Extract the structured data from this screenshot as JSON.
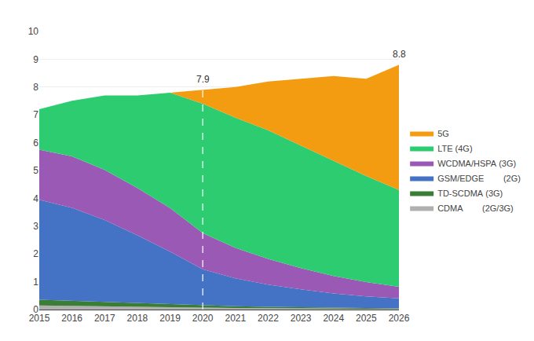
{
  "chart_data": {
    "type": "area",
    "stacked": true,
    "x": [
      2015,
      2016,
      2017,
      2018,
      2019,
      2020,
      2021,
      2022,
      2023,
      2024,
      2025,
      2026
    ],
    "series": [
      {
        "name": "CDMA        (2G/3G)",
        "color": "#b0b0b0",
        "values": [
          0.15,
          0.13,
          0.11,
          0.09,
          0.08,
          0.07,
          0.06,
          0.05,
          0.04,
          0.03,
          0.02,
          0.02
        ]
      },
      {
        "name": "TD-SCDMA (3G)",
        "color": "#3a7d34",
        "values": [
          0.2,
          0.18,
          0.16,
          0.13,
          0.1,
          0.08,
          0.06,
          0.05,
          0.04,
          0.03,
          0.02,
          0.02
        ]
      },
      {
        "name": "GSM/EDGE        (2G)",
        "color": "#4472c4",
        "values": [
          3.6,
          3.35,
          2.95,
          2.45,
          1.9,
          1.3,
          1.0,
          0.8,
          0.65,
          0.52,
          0.43,
          0.36
        ]
      },
      {
        "name": "WCDMA/HSPA (3G)",
        "color": "#9b59b6",
        "values": [
          1.8,
          1.85,
          1.8,
          1.7,
          1.57,
          1.3,
          1.1,
          0.92,
          0.76,
          0.63,
          0.52,
          0.42
        ]
      },
      {
        "name": "LTE (4G)",
        "color": "#2ecc71",
        "values": [
          1.45,
          2.0,
          2.68,
          3.33,
          4.15,
          4.65,
          4.68,
          4.63,
          4.41,
          4.14,
          3.81,
          3.48
        ]
      },
      {
        "name": "5G",
        "color": "#f39c12",
        "values": [
          0.0,
          0.0,
          0.0,
          0.0,
          0.0,
          0.5,
          1.1,
          1.75,
          2.4,
          3.05,
          3.5,
          4.5
        ]
      }
    ],
    "annotations": [
      {
        "text": "7.9",
        "x": 2020,
        "y": 7.9
      },
      {
        "text": "8.8",
        "x": 2026,
        "y": 8.8
      }
    ],
    "reference_lines": [
      {
        "x": 2020,
        "color": "#ffffff",
        "line_style": "dashed"
      }
    ],
    "xlim": [
      2015,
      2026
    ],
    "xticks": [
      2015,
      2016,
      2017,
      2018,
      2019,
      2020,
      2021,
      2022,
      2023,
      2024,
      2025,
      2026
    ],
    "ylim": [
      0,
      10
    ],
    "yticks": [
      0,
      1,
      2,
      3,
      4,
      5,
      6,
      7,
      8,
      9,
      10
    ],
    "grid": "y",
    "legend": "right"
  }
}
